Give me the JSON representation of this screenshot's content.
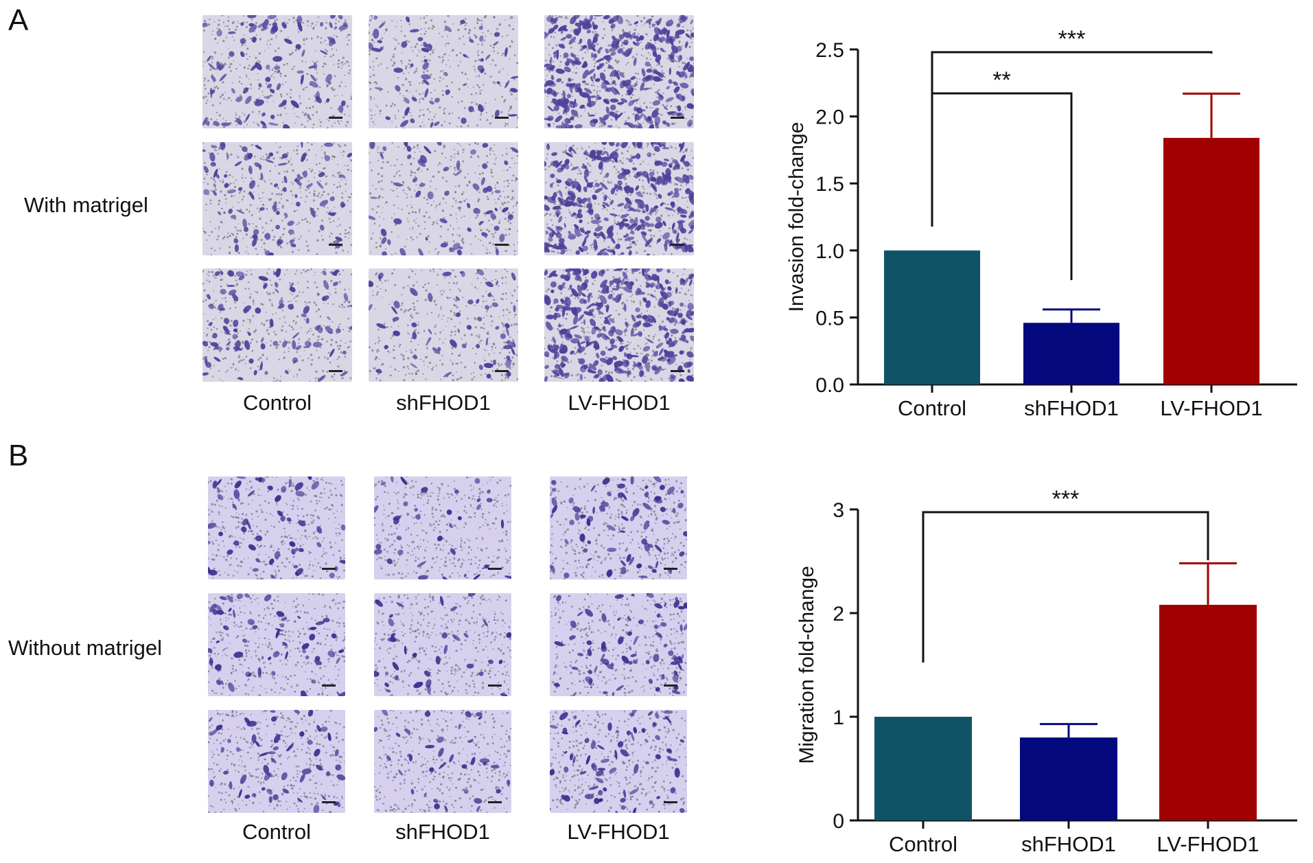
{
  "panels": [
    {
      "letter": "A",
      "row_label": "With matrigel",
      "columns": [
        "Control",
        "shFHOD1",
        "LV-FHOD1"
      ],
      "image_tint": "#d9d7e6",
      "cell_color": "#4f3f9a"
    },
    {
      "letter": "B",
      "row_label": "Without matrigel",
      "columns": [
        "Control",
        "shFHOD1",
        "LV-FHOD1"
      ],
      "image_tint": "#d6d0ee",
      "cell_color": "#3d2f8f"
    }
  ],
  "chart_data": [
    {
      "type": "bar",
      "categories": [
        "Control",
        "shFHOD1",
        "LV-FHOD1"
      ],
      "values": [
        1.0,
        0.46,
        1.84
      ],
      "errors": [
        0,
        0.1,
        0.33
      ],
      "colors": [
        "#0f5466",
        "#05097e",
        "#a00000"
      ],
      "ylabel": "Invasion fold-change",
      "ylim": [
        0,
        2.5
      ],
      "yticks": [
        "0.0",
        "0.5",
        "1.0",
        "1.5",
        "2.0",
        "2.5"
      ],
      "significance": [
        {
          "from": "Control",
          "to": "shFHOD1",
          "label": "**"
        },
        {
          "from": "Control",
          "to": "LV-FHOD1",
          "label": "***"
        }
      ]
    },
    {
      "type": "bar",
      "categories": [
        "Control",
        "shFHOD1",
        "LV-FHOD1"
      ],
      "values": [
        1.0,
        0.8,
        2.08
      ],
      "errors": [
        0,
        0.13,
        0.4
      ],
      "colors": [
        "#0f5466",
        "#05097e",
        "#a00000"
      ],
      "ylabel": "Migration fold-change",
      "ylim": [
        0,
        3
      ],
      "yticks": [
        "0",
        "1",
        "2",
        "3"
      ],
      "significance": [
        {
          "from": "Control",
          "to": "LV-FHOD1",
          "label": "***"
        }
      ]
    }
  ]
}
